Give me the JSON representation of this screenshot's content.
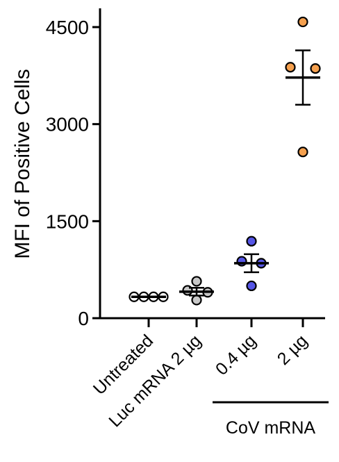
{
  "chart_data": {
    "type": "scatter",
    "ylabel": "MFI of Positive Cells",
    "ylim": [
      0,
      4800
    ],
    "yticks": [
      0,
      1500,
      3000,
      4500
    ],
    "ytick_labels": [
      "0",
      "1500",
      "3000",
      "4500"
    ],
    "categories": [
      "Untreated",
      "Luc mRNA 2 µg",
      "0.4 µg",
      "2 µg"
    ],
    "group_label": "CoV mRNA",
    "group_categories": [
      "0.4 µg",
      "2 µg"
    ],
    "groups": [
      {
        "category": "Untreated",
        "color": "#ffffff",
        "points": [
          330,
          330,
          330,
          330
        ],
        "mean": 330,
        "sem": 5
      },
      {
        "category": "Luc mRNA 2 µg",
        "color": "#c8c8c8",
        "points": [
          570,
          430,
          400,
          280
        ],
        "mean": 410,
        "sem": 60
      },
      {
        "category": "0.4 µg",
        "color": "#5656e6",
        "points": [
          1190,
          880,
          850,
          500
        ],
        "mean": 850,
        "sem": 140
      },
      {
        "category": "2 µg",
        "color": "#f5a04e",
        "points": [
          4580,
          3880,
          3860,
          2570
        ],
        "mean": 3720,
        "sem": 420
      }
    ]
  }
}
